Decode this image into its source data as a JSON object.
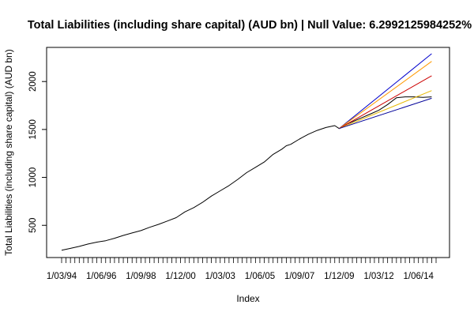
{
  "chart_data": {
    "type": "line",
    "title": "Total Liabilities (including share capital) (AUD bn)  | Null Value: 6.2992125984252%",
    "xlabel": "Index",
    "ylabel": "Total Liabilities (including share capital) (AUD bn)",
    "x_tick_labels": [
      "1/03/94",
      "1/06/96",
      "1/09/98",
      "1/12/00",
      "1/03/03",
      "1/06/05",
      "1/09/07",
      "1/12/09",
      "1/03/12",
      "1/06/14"
    ],
    "x_tick_positions": [
      0,
      9,
      18,
      27,
      36,
      45,
      54,
      63,
      72,
      81
    ],
    "y_ticks": [
      500,
      1000,
      1500,
      2000
    ],
    "xlim": [
      0,
      85
    ],
    "ylim": [
      230,
      2290
    ],
    "grid": false,
    "series": [
      {
        "color": "#000000",
        "x": [
          0,
          2,
          4,
          6,
          8,
          10,
          12,
          14,
          16,
          18,
          20,
          22,
          24,
          26,
          28,
          30,
          32,
          34,
          36,
          38,
          40,
          42,
          44,
          46,
          48,
          50,
          51,
          52,
          54,
          56,
          58,
          60,
          62,
          63,
          64,
          66,
          68,
          70,
          72,
          74,
          76,
          78,
          80,
          82,
          84
        ],
        "values": [
          240,
          260,
          280,
          305,
          325,
          340,
          365,
          395,
          420,
          445,
          480,
          510,
          545,
          580,
          640,
          685,
          740,
          805,
          860,
          915,
          980,
          1050,
          1105,
          1160,
          1240,
          1295,
          1330,
          1345,
          1400,
          1450,
          1490,
          1520,
          1540,
          1510,
          1540,
          1580,
          1620,
          1660,
          1700,
          1760,
          1830,
          1840,
          1840,
          1835,
          1840
        ]
      },
      {
        "color": "#0000cc",
        "x": [
          63,
          84
        ],
        "values": [
          1510,
          2290
        ]
      },
      {
        "color": "#ff9900",
        "x": [
          63,
          84
        ],
        "values": [
          1510,
          2210
        ]
      },
      {
        "color": "#cc0000",
        "x": [
          63,
          84
        ],
        "values": [
          1510,
          2060
        ]
      },
      {
        "color": "#e6b800",
        "x": [
          63,
          84
        ],
        "values": [
          1510,
          1905
        ]
      },
      {
        "color": "#000099",
        "x": [
          63,
          84
        ],
        "values": [
          1510,
          1825
        ]
      }
    ]
  }
}
